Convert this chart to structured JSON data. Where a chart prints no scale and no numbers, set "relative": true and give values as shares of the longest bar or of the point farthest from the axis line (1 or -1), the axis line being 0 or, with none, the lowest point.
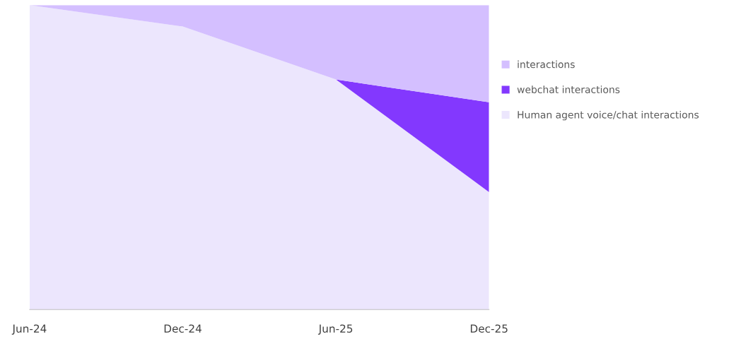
{
  "chart_data": {
    "type": "area",
    "stacked": true,
    "relative": true,
    "categories": [
      "Jun-24",
      "Dec-24",
      "Jun-25",
      "Dec-25"
    ],
    "series": [
      {
        "name": "Human agent voice/chat interactions",
        "color": "#ece6fd",
        "values": [
          1.0,
          0.93,
          0.756,
          0.386
        ]
      },
      {
        "name": "webchat interactions",
        "color": "#8338fe",
        "values": [
          0,
          0,
          0,
          0.295
        ]
      },
      {
        "name": "interactions",
        "color": "#d4bfff",
        "values": [
          0,
          0.07,
          0.244,
          0.319
        ]
      }
    ],
    "legend": "right",
    "grid": false
  }
}
